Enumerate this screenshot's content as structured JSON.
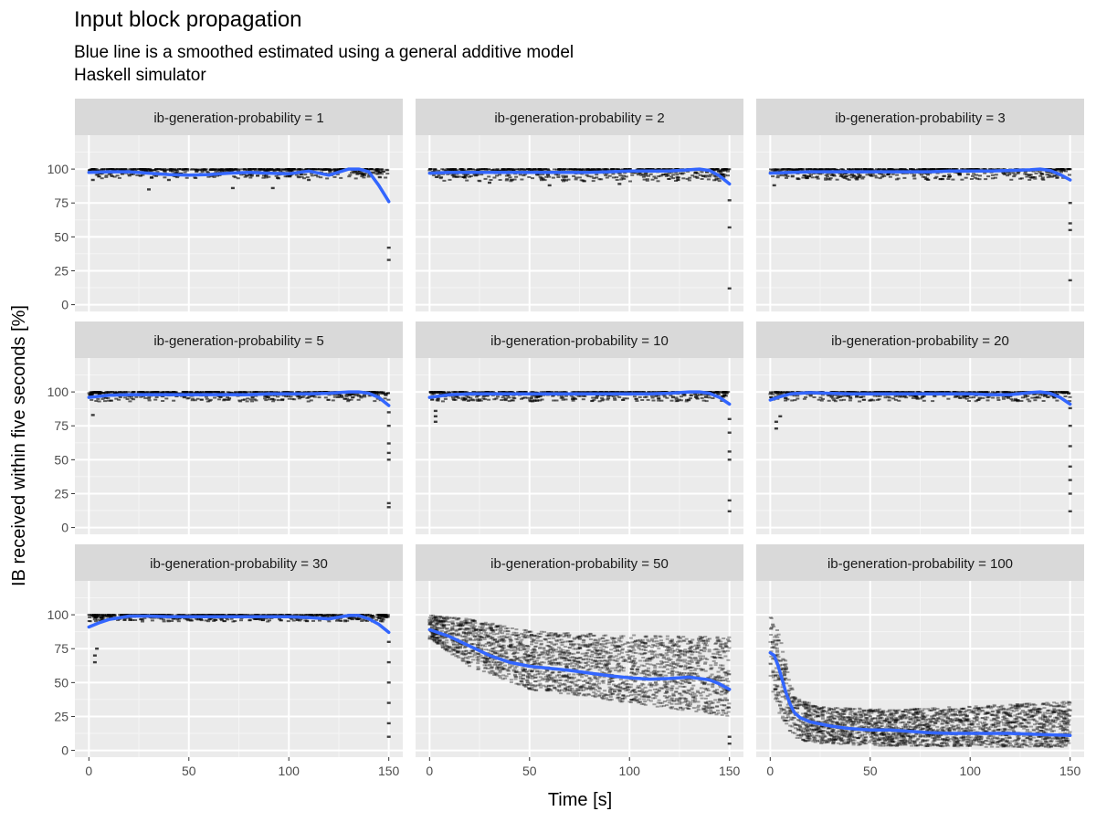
{
  "title": "Input block propagation",
  "subtitle_lines": [
    "Blue line is a smoothed estimated using a general additive model",
    "Haskell simulator"
  ],
  "chart_data": {
    "type": "scatter",
    "facet_variable": "ib-generation-probability",
    "xlabel": "Time [s]",
    "ylabel": "IB received within five seconds [%]",
    "xlim": [
      -7,
      157
    ],
    "ylim": [
      -5,
      125
    ],
    "x_ticks": [
      0,
      50,
      100,
      150
    ],
    "y_ticks": [
      0,
      25,
      50,
      75,
      100
    ],
    "grid": true,
    "smooth_color": "#3366ff",
    "point_color": "#000000",
    "panel_background": "#ebebeb",
    "strip_background": "#d9d9d9",
    "panels": [
      {
        "label": "ib-generation-probability = 1",
        "smooth": {
          "x": [
            0,
            10,
            20,
            30,
            40,
            50,
            60,
            70,
            80,
            90,
            100,
            110,
            120,
            130,
            135,
            140,
            145,
            150
          ],
          "y": [
            97.5,
            98,
            98,
            97,
            96,
            95.5,
            96,
            97,
            97.5,
            97,
            96.5,
            98.5,
            95.5,
            100,
            100,
            98,
            88,
            76
          ]
        },
        "points": {
          "band": [
            93,
            100
          ],
          "outliers": [
            [
              30,
              85
            ],
            [
              72,
              86
            ],
            [
              92,
              86
            ],
            [
              150,
              42
            ],
            [
              150,
              33
            ],
            [
              2,
              92
            ],
            [
              40,
              92
            ],
            [
              110,
              92
            ]
          ]
        }
      },
      {
        "label": "ib-generation-probability = 2",
        "smooth": {
          "x": [
            0,
            10,
            20,
            30,
            40,
            50,
            60,
            70,
            80,
            90,
            100,
            110,
            120,
            130,
            135,
            140,
            145,
            150
          ],
          "y": [
            97,
            97.5,
            97.5,
            97.5,
            97.5,
            97.5,
            97.5,
            97.5,
            97.5,
            98,
            98.5,
            98.5,
            98.5,
            99.5,
            100,
            99,
            95,
            89
          ]
        },
        "points": {
          "band": [
            91,
            100
          ],
          "outliers": [
            [
              150,
              77
            ],
            [
              150,
              57
            ],
            [
              150,
              12
            ],
            [
              30,
              90
            ],
            [
              60,
              88
            ],
            [
              95,
              89
            ]
          ]
        }
      },
      {
        "label": "ib-generation-probability = 3",
        "smooth": {
          "x": [
            0,
            10,
            20,
            30,
            40,
            50,
            60,
            70,
            80,
            90,
            100,
            110,
            120,
            130,
            135,
            140,
            145,
            150
          ],
          "y": [
            97,
            97.5,
            98,
            98,
            98,
            98,
            98,
            98,
            98,
            98.5,
            98.5,
            98.5,
            99,
            99.5,
            100,
            99,
            96,
            92
          ]
        },
        "points": {
          "band": [
            92,
            100
          ],
          "outliers": [
            [
              150,
              75
            ],
            [
              150,
              60
            ],
            [
              150,
              55
            ],
            [
              150,
              18
            ],
            [
              2,
              88
            ]
          ]
        }
      },
      {
        "label": "ib-generation-probability = 5",
        "smooth": {
          "x": [
            0,
            10,
            20,
            30,
            40,
            50,
            60,
            70,
            80,
            90,
            100,
            110,
            120,
            130,
            135,
            140,
            145,
            150
          ],
          "y": [
            96,
            97.5,
            98,
            98,
            98,
            98,
            98,
            98,
            98,
            98.5,
            98.5,
            98.5,
            99,
            100,
            100,
            99,
            96,
            90
          ]
        },
        "points": {
          "band": [
            93,
            100
          ],
          "outliers": [
            [
              2,
              83
            ],
            [
              150,
              85
            ],
            [
              150,
              75
            ],
            [
              150,
              62
            ],
            [
              150,
              55
            ],
            [
              150,
              50
            ],
            [
              150,
              18
            ],
            [
              150,
              15
            ]
          ]
        }
      },
      {
        "label": "ib-generation-probability = 10",
        "smooth": {
          "x": [
            0,
            10,
            20,
            30,
            40,
            50,
            60,
            70,
            80,
            90,
            100,
            110,
            120,
            130,
            135,
            140,
            145,
            150
          ],
          "y": [
            96,
            98,
            98.5,
            98.5,
            98.5,
            98.5,
            98.5,
            98.5,
            98.5,
            98.5,
            98.5,
            98.5,
            99,
            100,
            100,
            99,
            96,
            91
          ]
        },
        "points": {
          "band": [
            93,
            100
          ],
          "outliers": [
            [
              3,
              78
            ],
            [
              3,
              82
            ],
            [
              3,
              86
            ],
            [
              150,
              80
            ],
            [
              150,
              70
            ],
            [
              150,
              56
            ],
            [
              150,
              50
            ],
            [
              150,
              20
            ],
            [
              150,
              12
            ]
          ]
        }
      },
      {
        "label": "ib-generation-probability = 20",
        "smooth": {
          "x": [
            0,
            5,
            10,
            20,
            30,
            40,
            50,
            60,
            70,
            80,
            90,
            100,
            110,
            120,
            130,
            135,
            140,
            145,
            150
          ],
          "y": [
            94,
            96.5,
            98.5,
            99.5,
            99,
            98.5,
            98.5,
            98.5,
            98.5,
            98.5,
            98.5,
            98.5,
            98,
            98,
            99.5,
            100,
            99,
            96,
            91
          ]
        },
        "points": {
          "band": [
            93,
            100
          ],
          "outliers": [
            [
              3,
              73
            ],
            [
              3,
              78
            ],
            [
              5,
              82
            ],
            [
              150,
              88
            ],
            [
              150,
              75
            ],
            [
              150,
              60
            ],
            [
              150,
              45
            ],
            [
              150,
              35
            ],
            [
              150,
              25
            ],
            [
              150,
              12
            ]
          ]
        }
      },
      {
        "label": "ib-generation-probability = 30",
        "smooth": {
          "x": [
            0,
            5,
            10,
            20,
            30,
            40,
            50,
            60,
            70,
            80,
            90,
            100,
            110,
            120,
            130,
            135,
            140,
            145,
            150
          ],
          "y": [
            91,
            94,
            96.5,
            99,
            99,
            98.5,
            98.5,
            98.5,
            98.5,
            98.5,
            98.5,
            98.5,
            98,
            97,
            99.5,
            99.5,
            97,
            93,
            87
          ]
        },
        "points": {
          "band": [
            95,
            100
          ],
          "outliers": [
            [
              3,
              65
            ],
            [
              3,
              70
            ],
            [
              4,
              75
            ],
            [
              150,
              80
            ],
            [
              150,
              65
            ],
            [
              150,
              50
            ],
            [
              150,
              35
            ],
            [
              150,
              20
            ],
            [
              150,
              10
            ]
          ]
        }
      },
      {
        "label": "ib-generation-probability = 50",
        "smooth": {
          "x": [
            0,
            10,
            20,
            30,
            40,
            50,
            60,
            70,
            80,
            90,
            100,
            110,
            120,
            130,
            140,
            145,
            150
          ],
          "y": [
            89,
            84,
            77,
            70,
            65,
            62,
            60.5,
            59,
            57,
            55,
            53.5,
            52.5,
            53,
            54,
            52,
            49,
            45
          ]
        },
        "points": {
          "band": [
            [
              0,
              82,
              100
            ],
            [
              20,
              62,
              97
            ],
            [
              50,
              45,
              88
            ],
            [
              100,
              35,
              85
            ],
            [
              150,
              25,
              84
            ]
          ],
          "outliers": [
            [
              150,
              5
            ],
            [
              150,
              10
            ]
          ]
        }
      },
      {
        "label": "ib-generation-probability = 100",
        "smooth": {
          "x": [
            0,
            2,
            4,
            6,
            8,
            10,
            12,
            15,
            20,
            30,
            40,
            50,
            60,
            70,
            80,
            90,
            100,
            110,
            120,
            130,
            140,
            150
          ],
          "y": [
            72,
            70,
            62,
            52,
            42,
            34,
            28,
            24,
            21,
            18,
            16,
            15,
            15,
            14,
            13,
            12.5,
            12.5,
            12.5,
            12.5,
            12,
            11.5,
            11
          ]
        },
        "points": {
          "band": [
            [
              0,
              50,
              100
            ],
            [
              5,
              25,
              85
            ],
            [
              12,
              8,
              40
            ],
            [
              25,
              5,
              32
            ],
            [
              60,
              3,
              30
            ],
            [
              150,
              2,
              36
            ]
          ],
          "outliers": []
        }
      }
    ]
  }
}
